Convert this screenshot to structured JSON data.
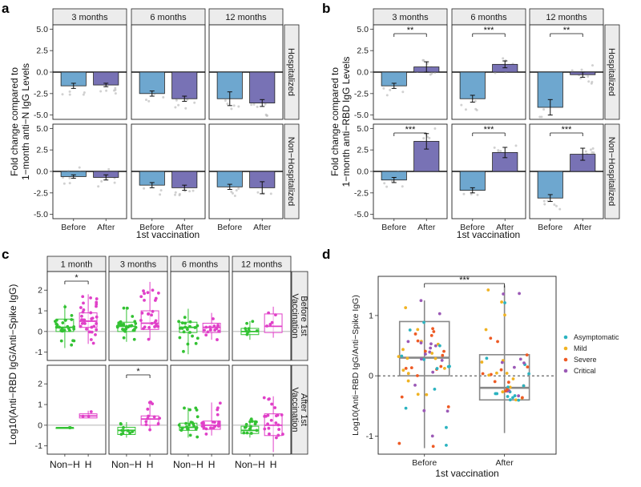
{
  "panel_labels": [
    "a",
    "b",
    "c",
    "d"
  ],
  "chart_data": [
    {
      "id": "a",
      "type": "bar",
      "ylabel_lines": [
        "Fold change compared to",
        "1−month anti−N IgG Levels"
      ],
      "xlabel": "1st vaccination",
      "categories": [
        "Before",
        "After"
      ],
      "columns": [
        "3 months",
        "6 months",
        "12 months"
      ],
      "rows": [
        "Hospitalized",
        "Non−Hospitalized"
      ],
      "ylim": [
        -5.5,
        5.5
      ],
      "yticks": [
        "5.0",
        "2.5",
        "0.0",
        "-2.5",
        "-5.0"
      ],
      "series": [
        {
          "name": "Before",
          "color": "#6ea7cf"
        },
        {
          "name": "After",
          "color": "#7872b5"
        }
      ],
      "cells": [
        [
          {
            "values": [
              -1.6,
              -1.5
            ],
            "err": [
              0.3,
              0.2
            ],
            "sig": ""
          },
          {
            "values": [
              -2.5,
              -3.1
            ],
            "err": [
              0.3,
              0.3
            ],
            "sig": ""
          },
          {
            "values": [
              -3.1,
              -3.6
            ],
            "err": [
              0.8,
              0.4
            ],
            "sig": ""
          }
        ],
        [
          {
            "values": [
              -0.6,
              -0.7
            ],
            "err": [
              0.2,
              0.3
            ],
            "sig": ""
          },
          {
            "values": [
              -1.6,
              -1.9
            ],
            "err": [
              0.3,
              0.3
            ],
            "sig": ""
          },
          {
            "values": [
              -1.8,
              -1.9
            ],
            "err": [
              0.3,
              0.7
            ],
            "sig": ""
          }
        ]
      ]
    },
    {
      "id": "b",
      "type": "bar",
      "ylabel_lines": [
        "Fold change compared to",
        "1−month anti−RBD IgG Levels"
      ],
      "xlabel": "1st vaccination",
      "categories": [
        "Before",
        "After"
      ],
      "columns": [
        "3 months",
        "6 months",
        "12 months"
      ],
      "rows": [
        "Hospitalized",
        "Non−Hospitalized"
      ],
      "ylim": [
        -5.5,
        5.5
      ],
      "yticks": [
        "5.0",
        "2.5",
        "0.0",
        "-2.5",
        "-5.0"
      ],
      "series": [
        {
          "name": "Before",
          "color": "#6ea7cf"
        },
        {
          "name": "After",
          "color": "#7872b5"
        }
      ],
      "cells": [
        [
          {
            "values": [
              -1.6,
              0.6
            ],
            "err": [
              0.3,
              0.6
            ],
            "sig": "**"
          },
          {
            "values": [
              -3.1,
              0.9
            ],
            "err": [
              0.4,
              0.4
            ],
            "sig": "***"
          },
          {
            "values": [
              -4.1,
              -0.3
            ],
            "err": [
              0.9,
              0.3
            ],
            "sig": "**"
          }
        ],
        [
          {
            "values": [
              -1.0,
              3.5
            ],
            "err": [
              0.3,
              0.9
            ],
            "sig": "***"
          },
          {
            "values": [
              -2.2,
              2.2
            ],
            "err": [
              0.3,
              0.6
            ],
            "sig": "***"
          },
          {
            "values": [
              -3.1,
              2.0
            ],
            "err": [
              0.4,
              0.7
            ],
            "sig": "***"
          }
        ]
      ]
    },
    {
      "id": "c",
      "type": "box",
      "ylabel": "Log10(Anti−RBD IgG/Anti−Spike IgG)",
      "categories": [
        "Non−H",
        "H"
      ],
      "columns": [
        "1 month",
        "3 months",
        "6 months",
        "12 months"
      ],
      "rows": [
        "Before 1st Vaccination",
        "After 1st Vaccination"
      ],
      "ylim": [
        -1.4,
        2.9
      ],
      "yticks": [
        "2",
        "1",
        "0",
        "-1"
      ],
      "colors": {
        "Non−H": "#33c233",
        "H": "#e040c8"
      },
      "cells": [
        [
          {
            "boxes": [
              [
                -0.8,
                0.0,
                0.2,
                0.6,
                1.3
              ],
              [
                -0.6,
                0.2,
                0.5,
                0.9,
                1.8
              ]
            ],
            "n": [
              28,
              32
            ],
            "sig": "*"
          },
          {
            "boxes": [
              [
                -0.5,
                0.0,
                0.25,
                0.45,
                1.2
              ],
              [
                -0.4,
                0.1,
                0.4,
                1.0,
                2.4
              ]
            ],
            "n": [
              30,
              26
            ],
            "sig": ""
          },
          {
            "boxes": [
              [
                -1.1,
                -0.05,
                0.2,
                0.45,
                1.1
              ],
              [
                -0.4,
                -0.05,
                0.2,
                0.4,
                0.9
              ]
            ],
            "n": [
              22,
              15
            ],
            "sig": ""
          },
          {
            "boxes": [
              [
                -0.4,
                -0.15,
                0.0,
                0.15,
                0.5
              ],
              [
                -0.3,
                -0.05,
                0.25,
                0.85,
                1.2
              ]
            ],
            "n": [
              9,
              5
            ],
            "sig": ""
          }
        ],
        [
          {
            "boxes": [
              [
                -0.12,
                -0.12,
                -0.12,
                -0.12,
                -0.12
              ],
              [
                0.35,
                0.35,
                0.45,
                0.55,
                0.7
              ]
            ],
            "n": [
              2,
              3
            ],
            "sig": ""
          },
          {
            "boxes": [
              [
                -0.6,
                -0.45,
                -0.25,
                -0.1,
                0.15
              ],
              [
                -0.3,
                0.0,
                0.3,
                0.45,
                1.2
              ]
            ],
            "n": [
              10,
              12
            ],
            "sig": "*"
          },
          {
            "boxes": [
              [
                -0.6,
                -0.25,
                -0.1,
                0.1,
                0.85
              ],
              [
                -0.5,
                -0.2,
                0.0,
                0.2,
                1.1
              ]
            ],
            "n": [
              22,
              22
            ],
            "sig": ""
          },
          {
            "boxes": [
              [
                -0.6,
                -0.4,
                -0.25,
                -0.05,
                0.3
              ],
              [
                -1.3,
                -0.5,
                0.0,
                0.55,
                1.4
              ]
            ],
            "n": [
              16,
              22
            ],
            "sig": ""
          }
        ]
      ]
    },
    {
      "id": "d",
      "type": "box",
      "ylabel": "Log10(Anti−RBD IgG/Anti−Spike IgG)",
      "xlabel": "1st vaccination",
      "categories": [
        "Before",
        "After"
      ],
      "ylim": [
        -1.3,
        1.65
      ],
      "yticks": [
        "1",
        "0",
        "-1"
      ],
      "boxes": [
        [
          -1.2,
          0.0,
          0.3,
          0.9,
          1.25
        ],
        [
          -0.95,
          -0.4,
          -0.2,
          0.35,
          1.5
        ]
      ],
      "n": [
        60,
        50
      ],
      "sig": "***",
      "legend": [
        {
          "name": "Asymptomatic",
          "color": "#2bb3c0"
        },
        {
          "name": "Mild",
          "color": "#f0b323"
        },
        {
          "name": "Severe",
          "color": "#ee5a24"
        },
        {
          "name": "Critical",
          "color": "#9b59b6"
        }
      ],
      "legend_position": "right"
    }
  ]
}
